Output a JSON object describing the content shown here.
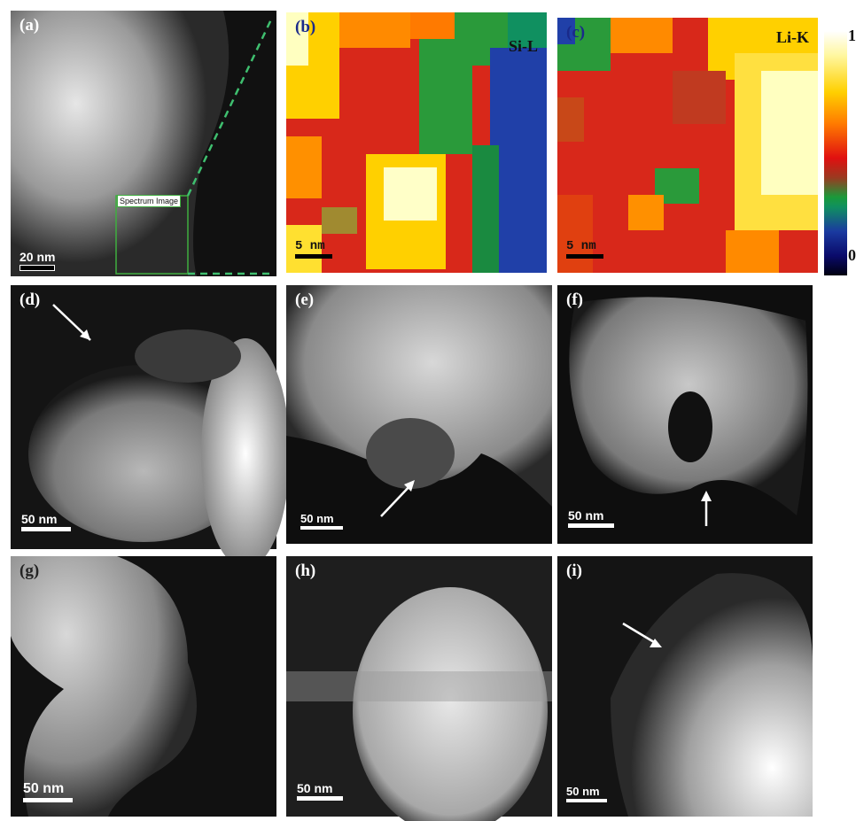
{
  "panels": {
    "a": {
      "label": "(a)",
      "scale": "20 nm",
      "spectrum_box": "Spectrum Image"
    },
    "b": {
      "label": "(b)",
      "scale": "5  nm",
      "element": "Si-L"
    },
    "c": {
      "label": "(c)",
      "scale": "5  nm",
      "element": "Li-K"
    },
    "d": {
      "label": "(d)",
      "scale": "50 nm"
    },
    "e": {
      "label": "(e)",
      "scale": "50 nm"
    },
    "f": {
      "label": "(f)",
      "scale": "50 nm"
    },
    "g": {
      "label": "(g)",
      "scale": "50 nm"
    },
    "h": {
      "label": "(h)",
      "scale": "50 nm"
    },
    "i": {
      "label": "(i)",
      "scale": "50 nm"
    }
  },
  "colorbar": {
    "max_label": "1",
    "min_label": "0"
  },
  "colors": {
    "spectrum_box": "#3fae3f",
    "dashed_line": "#3fbf6f"
  }
}
